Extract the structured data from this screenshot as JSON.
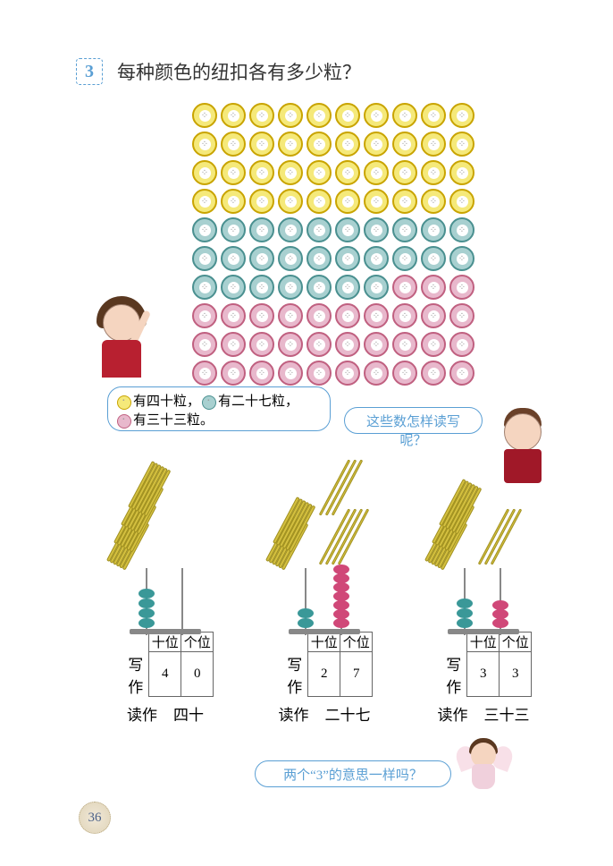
{
  "question_number": "3",
  "question_text": "每种颜色的纽扣各有多少粒？",
  "buttons": {
    "grid": [
      "YYYYYYYYYY",
      "YYYYYYYYYY",
      "YYYYYYYYYY",
      "YYYYYYYYYY",
      "TTTTTTTTTT",
      "TTTTTTTTTT",
      "TTTTTTTPPP",
      "PPPPPPPPPP",
      "PPPPPPPPPP",
      "PPPPPPPPPP"
    ],
    "colors": {
      "Y": "#f5e97a",
      "T": "#a8d0d0",
      "P": "#e8b8cc"
    }
  },
  "bubble1": {
    "part_yellow": "有四十粒，",
    "part_teal": "有二十七粒，",
    "part_pink": "有三十三粒。"
  },
  "bubble2": "这些数怎样读写呢？",
  "columns": [
    {
      "bundles_tens": 4,
      "singles": 0,
      "beads_tens": 4,
      "beads_ones": 0,
      "tens_label": "十位",
      "ones_label": "个位",
      "write_label": "写作",
      "tens_digit": "4",
      "ones_digit": "0",
      "read_label": "读作",
      "read_value": "四十"
    },
    {
      "bundles_tens": 2,
      "singles": 7,
      "beads_tens": 2,
      "beads_ones": 7,
      "tens_label": "十位",
      "ones_label": "个位",
      "write_label": "写作",
      "tens_digit": "2",
      "ones_digit": "7",
      "read_label": "读作",
      "read_value": "二十七"
    },
    {
      "bundles_tens": 3,
      "singles": 3,
      "beads_tens": 3,
      "beads_ones": 3,
      "tens_label": "十位",
      "ones_label": "个位",
      "write_label": "写作",
      "tens_digit": "3",
      "ones_digit": "3",
      "read_label": "读作",
      "read_value": "三十三"
    }
  ],
  "bubble3": "两个“3”的意思一样吗？",
  "page_number": "36",
  "style": {
    "accent_blue": "#5a9fd4",
    "bead_teal": "#3a9898",
    "bead_pink": "#d04878",
    "stick_color": "#d4c040"
  }
}
